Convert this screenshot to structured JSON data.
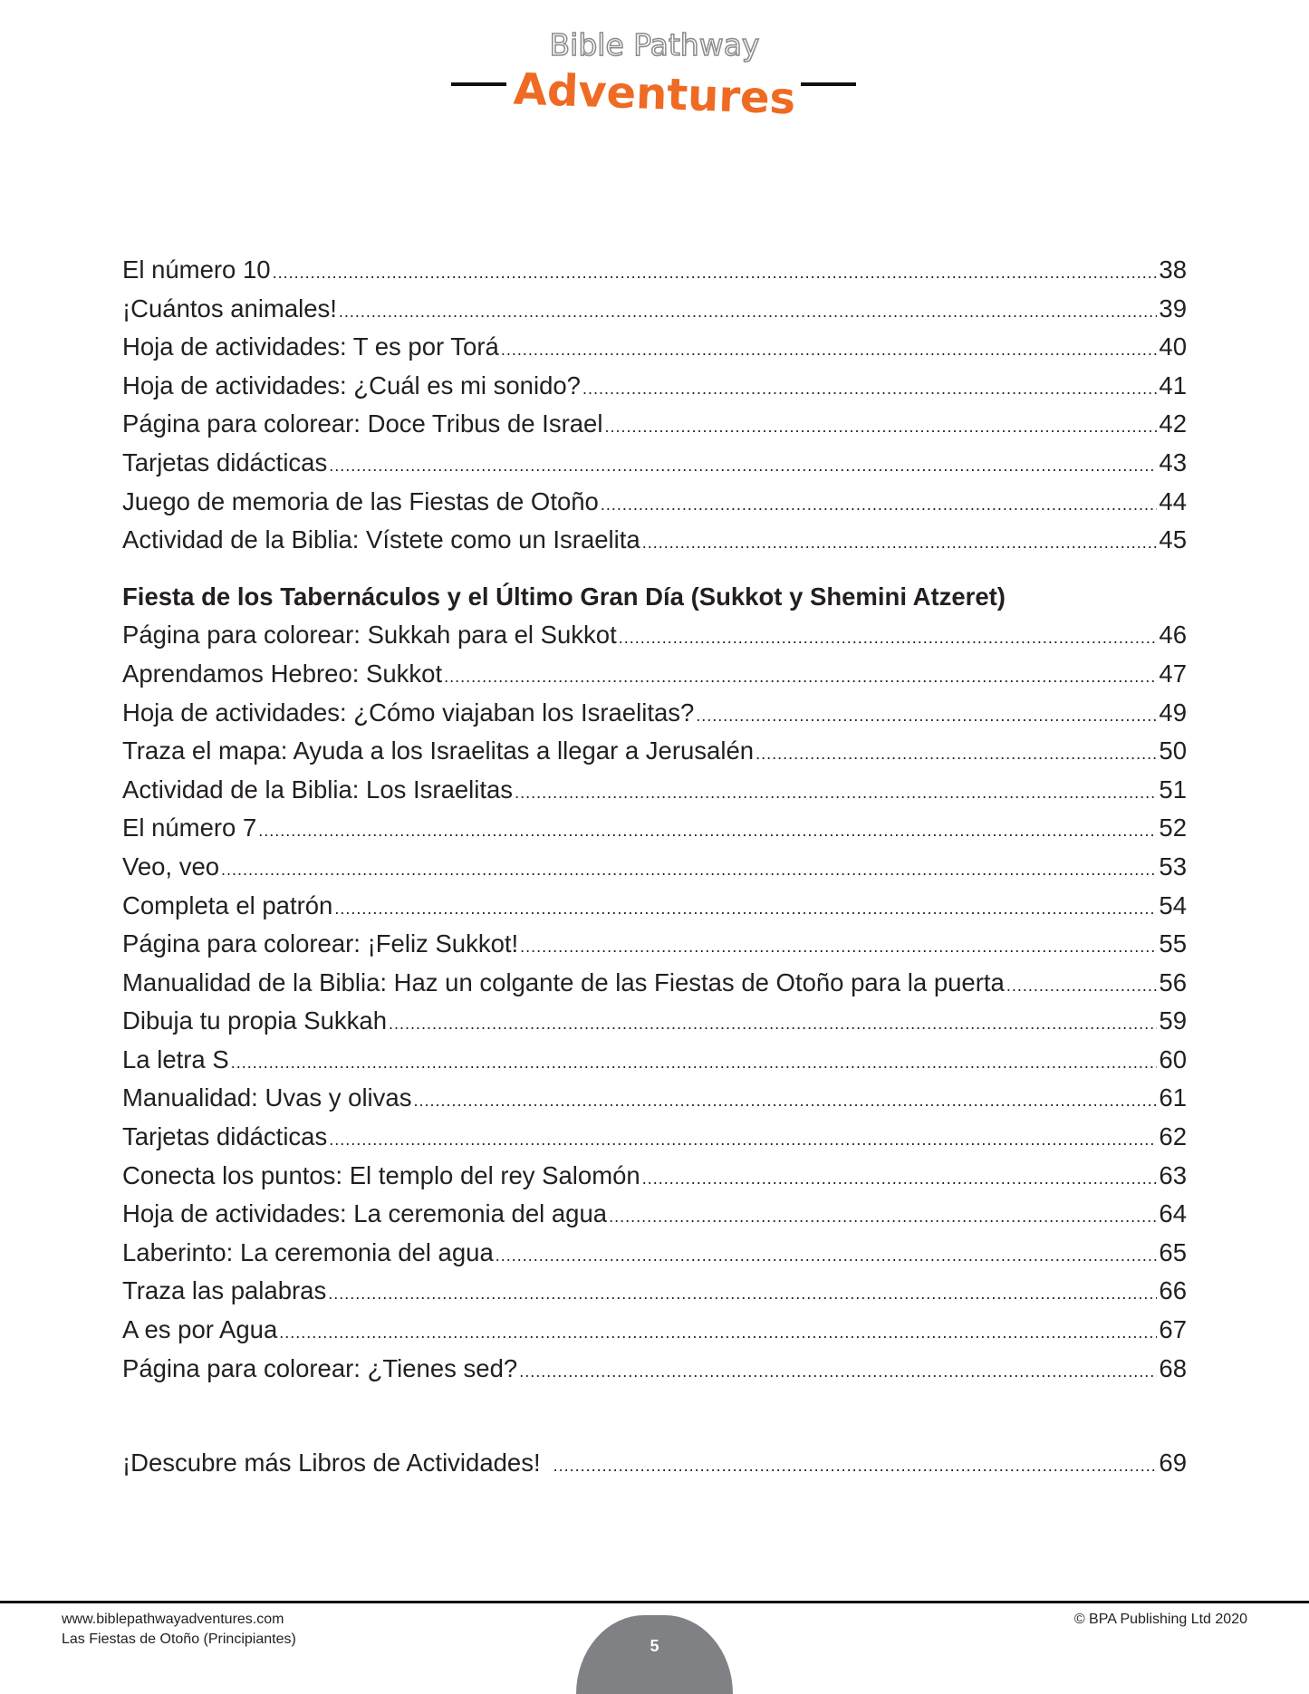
{
  "logo": {
    "line1": "Bible Pathway",
    "line2": "Adventures",
    "accent": "#ef6a22"
  },
  "toc": {
    "group1": [
      {
        "title": "El número 10",
        "page": "38"
      },
      {
        "title": "¡Cuántos animales!",
        "page": "39"
      },
      {
        "title": "Hoja de actividades: T es por Torá",
        "page": "40"
      },
      {
        "title": "Hoja de actividades: ¿Cuál es mi sonido?",
        "page": "41"
      },
      {
        "title": "Página para colorear: Doce Tribus de Israel",
        "page": "42"
      },
      {
        "title": "Tarjetas didácticas",
        "page": "43"
      },
      {
        "title": "Juego de memoria de las Fiestas de Otoño",
        "page": "44"
      },
      {
        "title": "Actividad de la Biblia: Vístete como un Israelita",
        "page": "45"
      }
    ],
    "section_heading": "Fiesta de los Tabernáculos y el Último Gran Día (Sukkot y Shemini Atzeret)",
    "group2": [
      {
        "title": "Página para colorear: Sukkah para el Sukkot",
        "page": "46"
      },
      {
        "title": "Aprendamos Hebreo: Sukkot",
        "page": "47"
      },
      {
        "title": "Hoja de actividades: ¿Cómo viajaban los Israelitas?",
        "page": "49"
      },
      {
        "title": "Traza el mapa: Ayuda a los Israelitas a llegar a Jerusalén",
        "page": "50"
      },
      {
        "title": "Actividad de la Biblia: Los Israelitas",
        "page": "51"
      },
      {
        "title": "El número 7",
        "page": "52"
      },
      {
        "title": "Veo, veo",
        "page": "53"
      },
      {
        "title": "Completa el patrón",
        "page": "54"
      },
      {
        "title": "Página para colorear: ¡Feliz Sukkot!",
        "page": "55"
      },
      {
        "title": "Manualidad de la Biblia: Haz un colgante de las Fiestas de Otoño para la puerta",
        "page": "56"
      },
      {
        "title": "Dibuja tu propia Sukkah",
        "page": "59"
      },
      {
        "title": "La letra S",
        "page": "60"
      },
      {
        "title": "Manualidad: Uvas y olivas",
        "page": "61"
      },
      {
        "title": "Tarjetas didácticas",
        "page": "62"
      },
      {
        "title": "Conecta los puntos: El templo del rey Salomón",
        "page": "63"
      },
      {
        "title": "Hoja de actividades: La ceremonia del agua",
        "page": "64"
      },
      {
        "title": "Laberinto: La ceremonia del agua",
        "page": "65"
      },
      {
        "title": "Traza las palabras",
        "page": "66"
      },
      {
        "title": "A es por Agua",
        "page": "67"
      },
      {
        "title": "Página para colorear: ¿Tienes sed?",
        "page": "68"
      }
    ],
    "final": {
      "title": "¡Descubre más Libros de Actividades!",
      "page": "69"
    }
  },
  "footer": {
    "website": "www.biblepathwayadventures.com",
    "book_title": "Las Fiestas de Otoño (Principiantes)",
    "copyright": "© BPA Publishing Ltd 2020",
    "page_number": "5"
  }
}
